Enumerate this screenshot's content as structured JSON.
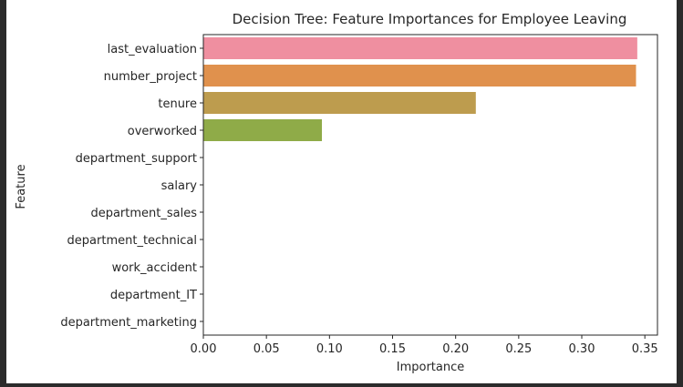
{
  "chart_data": {
    "type": "bar",
    "orientation": "horizontal",
    "title": "Decision Tree: Feature Importances for Employee Leaving",
    "xlabel": "Importance",
    "ylabel": "Feature",
    "xlim": [
      0,
      0.36
    ],
    "xticks": [
      "0.00",
      "0.05",
      "0.10",
      "0.15",
      "0.20",
      "0.25",
      "0.30",
      "0.35"
    ],
    "grid": false,
    "categories": [
      "last_evaluation",
      "number_project",
      "tenure",
      "overworked",
      "department_support",
      "salary",
      "department_sales",
      "department_technical",
      "work_accident",
      "department_IT",
      "department_marketing"
    ],
    "values": [
      0.344,
      0.343,
      0.216,
      0.094,
      0,
      0,
      0,
      0,
      0,
      0,
      0
    ],
    "colors": [
      "#ef8fa0",
      "#e0914d",
      "#bd9c4e",
      "#8fab48",
      "#7fb548",
      "#55b77a",
      "#4fb59a",
      "#4fb1b4",
      "#53aed0",
      "#8fa1e4",
      "#c08de2"
    ]
  }
}
